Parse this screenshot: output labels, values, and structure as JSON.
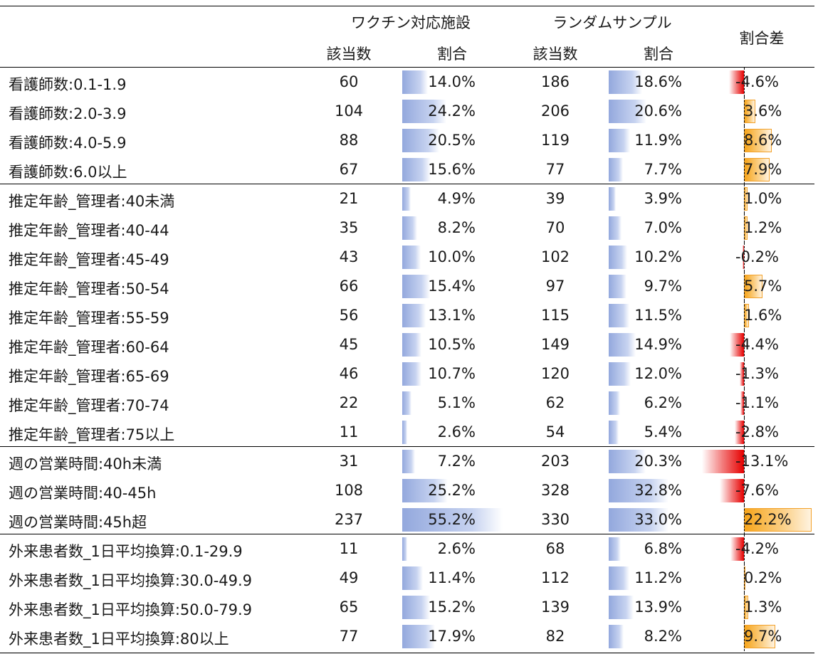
{
  "header": {
    "group_vaccine": "ワクチン対応施設",
    "group_random": "ランダムサンプル",
    "count": "該当数",
    "ratio": "割合",
    "diff": "割合差"
  },
  "rows": [
    {
      "label": "看護師数:0.1-1.9",
      "v_count": "60",
      "v_pct": "14.0%",
      "v_val": 14.0,
      "r_count": "186",
      "r_pct": "18.6%",
      "r_val": 18.6,
      "diff": "-4.6%",
      "diff_val": -4.6
    },
    {
      "label": "看護師数:2.0-3.9",
      "v_count": "104",
      "v_pct": "24.2%",
      "v_val": 24.2,
      "r_count": "206",
      "r_pct": "20.6%",
      "r_val": 20.6,
      "diff": "3.6%",
      "diff_val": 3.6
    },
    {
      "label": "看護師数:4.0-5.9",
      "v_count": "88",
      "v_pct": "20.5%",
      "v_val": 20.5,
      "r_count": "119",
      "r_pct": "11.9%",
      "r_val": 11.9,
      "diff": "8.6%",
      "diff_val": 8.6
    },
    {
      "label": "看護師数:6.0以上",
      "v_count": "67",
      "v_pct": "15.6%",
      "v_val": 15.6,
      "r_count": "77",
      "r_pct": "7.7%",
      "r_val": 7.7,
      "diff": "7.9%",
      "diff_val": 7.9
    },
    {
      "label": "推定年齢_管理者:40未満",
      "v_count": "21",
      "v_pct": "4.9%",
      "v_val": 4.9,
      "r_count": "39",
      "r_pct": "3.9%",
      "r_val": 3.9,
      "diff": "1.0%",
      "diff_val": 1.0
    },
    {
      "label": "推定年齢_管理者:40-44",
      "v_count": "35",
      "v_pct": "8.2%",
      "v_val": 8.2,
      "r_count": "70",
      "r_pct": "7.0%",
      "r_val": 7.0,
      "diff": "1.2%",
      "diff_val": 1.2
    },
    {
      "label": "推定年齢_管理者:45-49",
      "v_count": "43",
      "v_pct": "10.0%",
      "v_val": 10.0,
      "r_count": "102",
      "r_pct": "10.2%",
      "r_val": 10.2,
      "diff": "-0.2%",
      "diff_val": -0.2
    },
    {
      "label": "推定年齢_管理者:50-54",
      "v_count": "66",
      "v_pct": "15.4%",
      "v_val": 15.4,
      "r_count": "97",
      "r_pct": "9.7%",
      "r_val": 9.7,
      "diff": "5.7%",
      "diff_val": 5.7
    },
    {
      "label": "推定年齢_管理者:55-59",
      "v_count": "56",
      "v_pct": "13.1%",
      "v_val": 13.1,
      "r_count": "115",
      "r_pct": "11.5%",
      "r_val": 11.5,
      "diff": "1.6%",
      "diff_val": 1.6
    },
    {
      "label": "推定年齢_管理者:60-64",
      "v_count": "45",
      "v_pct": "10.5%",
      "v_val": 10.5,
      "r_count": "149",
      "r_pct": "14.9%",
      "r_val": 14.9,
      "diff": "-4.4%",
      "diff_val": -4.4
    },
    {
      "label": "推定年齢_管理者:65-69",
      "v_count": "46",
      "v_pct": "10.7%",
      "v_val": 10.7,
      "r_count": "120",
      "r_pct": "12.0%",
      "r_val": 12.0,
      "diff": "-1.3%",
      "diff_val": -1.3
    },
    {
      "label": "推定年齢_管理者:70-74",
      "v_count": "22",
      "v_pct": "5.1%",
      "v_val": 5.1,
      "r_count": "62",
      "r_pct": "6.2%",
      "r_val": 6.2,
      "diff": "-1.1%",
      "diff_val": -1.1
    },
    {
      "label": "推定年齢_管理者:75以上",
      "v_count": "11",
      "v_pct": "2.6%",
      "v_val": 2.6,
      "r_count": "54",
      "r_pct": "5.4%",
      "r_val": 5.4,
      "diff": "-2.8%",
      "diff_val": -2.8
    },
    {
      "label": "週の営業時間:40h未満",
      "v_count": "31",
      "v_pct": "7.2%",
      "v_val": 7.2,
      "r_count": "203",
      "r_pct": "20.3%",
      "r_val": 20.3,
      "diff": "-13.1%",
      "diff_val": -13.1
    },
    {
      "label": "週の営業時間:40-45h",
      "v_count": "108",
      "v_pct": "25.2%",
      "v_val": 25.2,
      "r_count": "328",
      "r_pct": "32.8%",
      "r_val": 32.8,
      "diff": "-7.6%",
      "diff_val": -7.6
    },
    {
      "label": "週の営業時間:45h超",
      "v_count": "237",
      "v_pct": "55.2%",
      "v_val": 55.2,
      "r_count": "330",
      "r_pct": "33.0%",
      "r_val": 33.0,
      "diff": "22.2%",
      "diff_val": 22.2
    },
    {
      "label": "外来患者数_1日平均換算:0.1-29.9",
      "v_count": "11",
      "v_pct": "2.6%",
      "v_val": 2.6,
      "r_count": "68",
      "r_pct": "6.8%",
      "r_val": 6.8,
      "diff": "-4.2%",
      "diff_val": -4.2
    },
    {
      "label": "外来患者数_1日平均換算:30.0-49.9",
      "v_count": "49",
      "v_pct": "11.4%",
      "v_val": 11.4,
      "r_count": "112",
      "r_pct": "11.2%",
      "r_val": 11.2,
      "diff": "0.2%",
      "diff_val": 0.2
    },
    {
      "label": "外来患者数_1日平均換算:50.0-79.9",
      "v_count": "65",
      "v_pct": "15.2%",
      "v_val": 15.2,
      "r_count": "139",
      "r_pct": "13.9%",
      "r_val": 13.9,
      "diff": "1.3%",
      "diff_val": 1.3
    },
    {
      "label": "外来患者数_1日平均換算:80以上",
      "v_count": "77",
      "v_pct": "17.9%",
      "v_val": 17.9,
      "r_count": "82",
      "r_pct": "8.2%",
      "r_val": 8.2,
      "diff": "9.7%",
      "diff_val": 9.7
    }
  ],
  "group_starts": [
    0,
    4,
    13,
    16
  ]
}
